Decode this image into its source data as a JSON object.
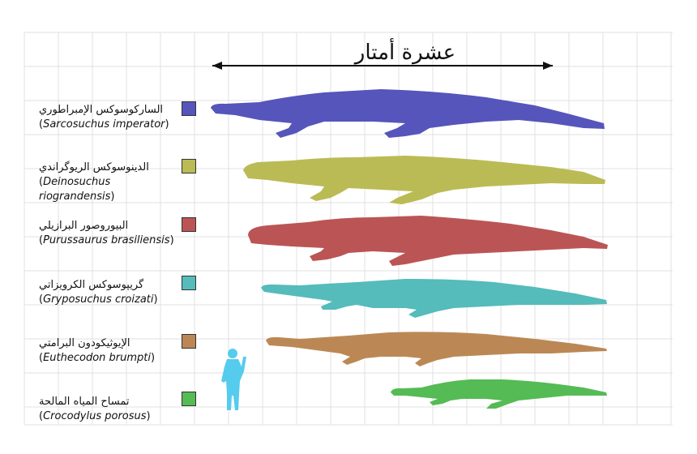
{
  "scale_label": "عشرة أمتار",
  "species": [
    {
      "arabic": "الساركوسوكس الإمبراطوري",
      "scientific": "Sarcosuchus imperator",
      "color": "#5555bb"
    },
    {
      "arabic": "الدينوسوكس الريوگراندي",
      "scientific": "Deinosuchus riograndensis",
      "color": "#bbbb55"
    },
    {
      "arabic": "البيوروصور البرازيلي",
      "scientific": "Purussaurus brasiliensis",
      "color": "#bb5555"
    },
    {
      "arabic": "گريپوسوكس الكرويزاتي",
      "scientific": "Gryposuchus croizati",
      "color": "#55bbbb"
    },
    {
      "arabic": "الإيوثيكودون البرامتي",
      "scientific": "Euthecodon brumpti",
      "color": "#bb8855"
    },
    {
      "arabic": "تمساح المياه المالحة",
      "scientific": "Crocodylus porosus",
      "color": "#55bb55"
    }
  ],
  "human_color": "#55ccee",
  "grid_color": "#e0e0e0"
}
